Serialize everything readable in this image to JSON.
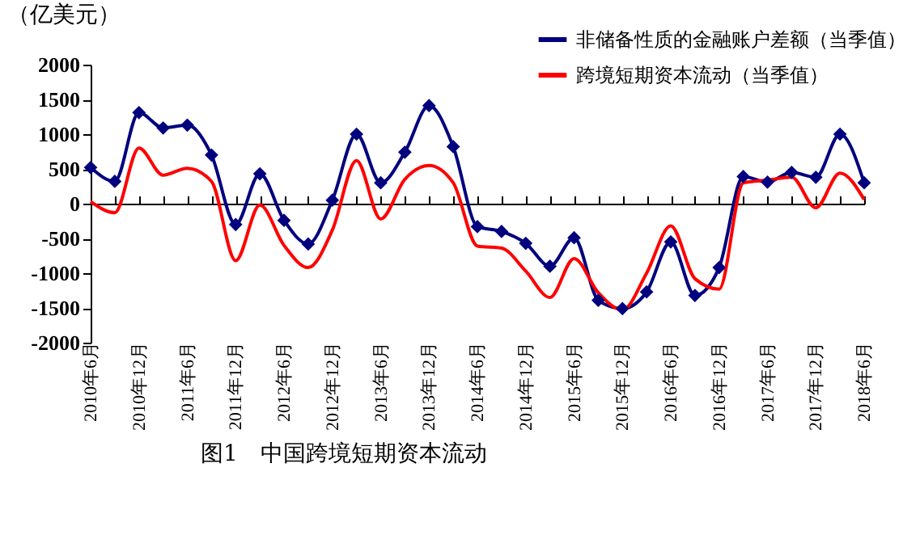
{
  "chart_data": {
    "type": "line",
    "ylabel": "（亿美元）",
    "annotations": [
      "图1　中国跨境短期资本流动"
    ],
    "categories": [
      "2010年6月",
      null,
      "2010年12月",
      null,
      "2011年6月",
      null,
      "2011年12月",
      null,
      "2012年6月",
      null,
      "2012年12月",
      null,
      "2013年6月",
      null,
      "2013年12月",
      null,
      "2014年6月",
      null,
      "2014年12月",
      null,
      "2015年6月",
      null,
      "2015年12月",
      null,
      "2016年6月",
      null,
      "2016年12月",
      null,
      "2017年6月",
      null,
      "2017年12月",
      null,
      "2018年6月"
    ],
    "series": [
      {
        "name": "非储备性质的金融账户差额（当季值）",
        "color": "#00007f",
        "marker": "diamond",
        "values": [
          520,
          320,
          1310,
          1090,
          1130,
          700,
          -300,
          430,
          -240,
          -580,
          50,
          1000,
          300,
          740,
          1410,
          820,
          -330,
          -400,
          -570,
          -900,
          -490,
          -1390,
          -1510,
          -1270,
          -550,
          -1320,
          -920,
          390,
          310,
          450,
          380,
          1000,
          300
        ]
      },
      {
        "name": "跨境短期资本流动（当季值）",
        "color": "#ff0000",
        "marker": "none",
        "values": [
          30,
          -130,
          800,
          410,
          510,
          320,
          -820,
          -20,
          -600,
          -920,
          -380,
          620,
          -220,
          350,
          550,
          300,
          -610,
          -640,
          -970,
          -1350,
          -790,
          -1280,
          -1530,
          -1000,
          -320,
          -1080,
          -1230,
          300,
          340,
          380,
          -60,
          440,
          60
        ]
      }
    ],
    "ylim": [
      -2000,
      2000
    ],
    "yticks": [
      -2000,
      -1500,
      -1000,
      -500,
      0,
      500,
      1000,
      1500,
      2000
    ],
    "legend": "top right",
    "line_style": "solid"
  }
}
